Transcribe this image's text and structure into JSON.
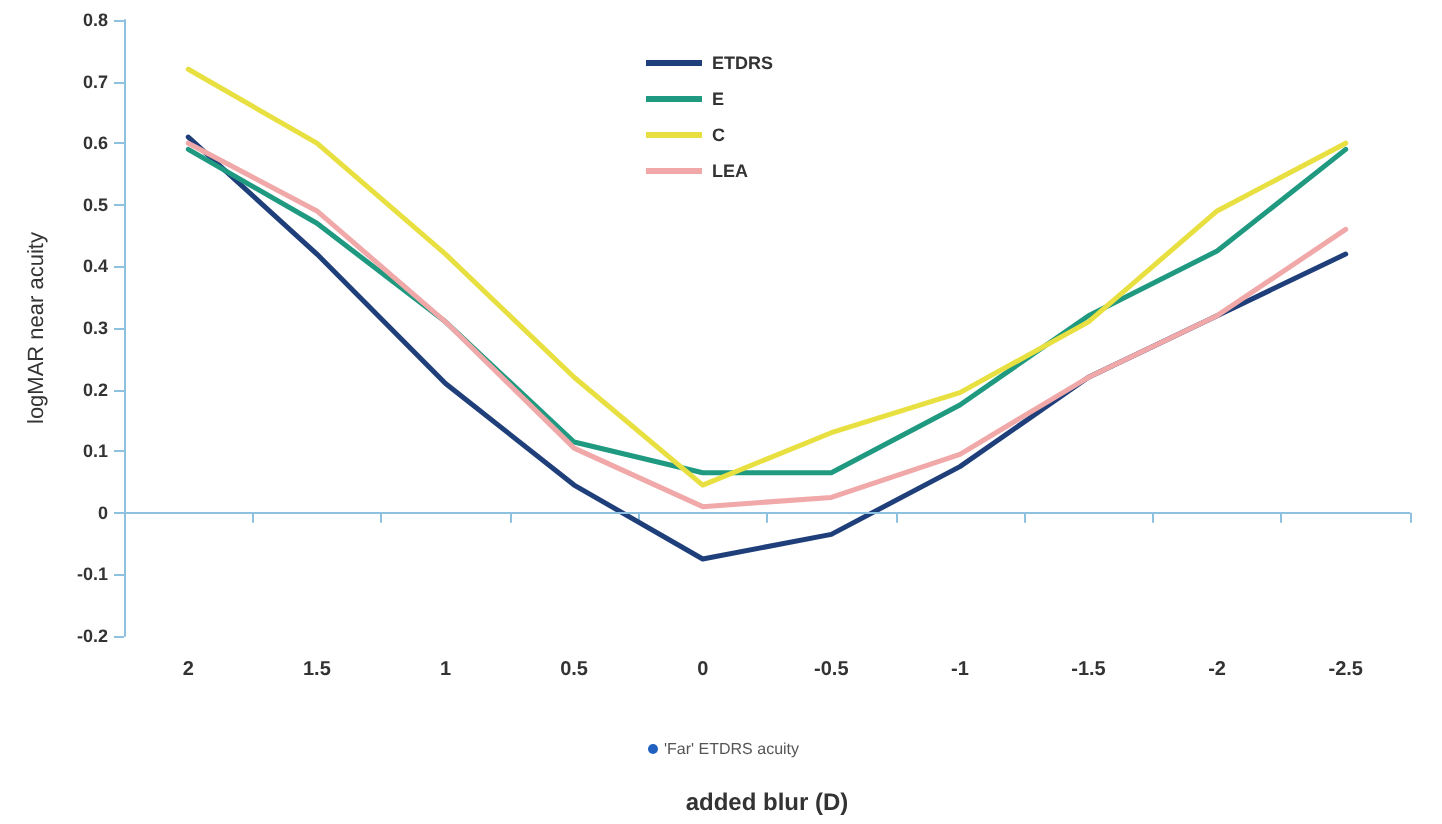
{
  "chart_data": {
    "type": "line",
    "xlabel": "added blur (D)",
    "ylabel": "logMAR near acuity",
    "categories": [
      "2",
      "1.5",
      "1",
      "0.5",
      "0",
      "-0.5",
      "-1",
      "-1.5",
      "-2",
      "-2.5"
    ],
    "series": [
      {
        "name": "ETDRS",
        "color": "#1f3f7a",
        "values": [
          0.61,
          0.42,
          0.21,
          0.045,
          -0.075,
          -0.035,
          0.075,
          0.22,
          0.32,
          0.42
        ]
      },
      {
        "name": "E",
        "color": "#1f9a80",
        "values": [
          0.59,
          0.47,
          0.31,
          0.115,
          0.065,
          0.065,
          0.175,
          0.32,
          0.425,
          0.59
        ]
      },
      {
        "name": "C",
        "color": "#e8e040",
        "values": [
          0.72,
          0.6,
          0.42,
          0.22,
          0.045,
          0.13,
          0.195,
          0.31,
          0.49,
          0.6
        ]
      },
      {
        "name": "LEA",
        "color": "#f0a8a8",
        "values": [
          0.6,
          0.49,
          0.31,
          0.105,
          0.01,
          0.025,
          0.095,
          0.22,
          0.32,
          0.46
        ]
      }
    ],
    "annotations": [
      "'Far' ETDRS acuity"
    ],
    "ref_lines": [
      {
        "axis": "y",
        "value": 0,
        "color": "#8ec1e0"
      }
    ],
    "ylim": [
      -0.2,
      0.8
    ],
    "yticks": [
      -0.2,
      -0.1,
      0,
      0.1,
      0.2,
      0.3,
      0.4,
      0.5,
      0.6,
      0.7,
      0.8
    ],
    "grid": false,
    "legend": "top",
    "marker": "none",
    "line_style": "solid"
  }
}
